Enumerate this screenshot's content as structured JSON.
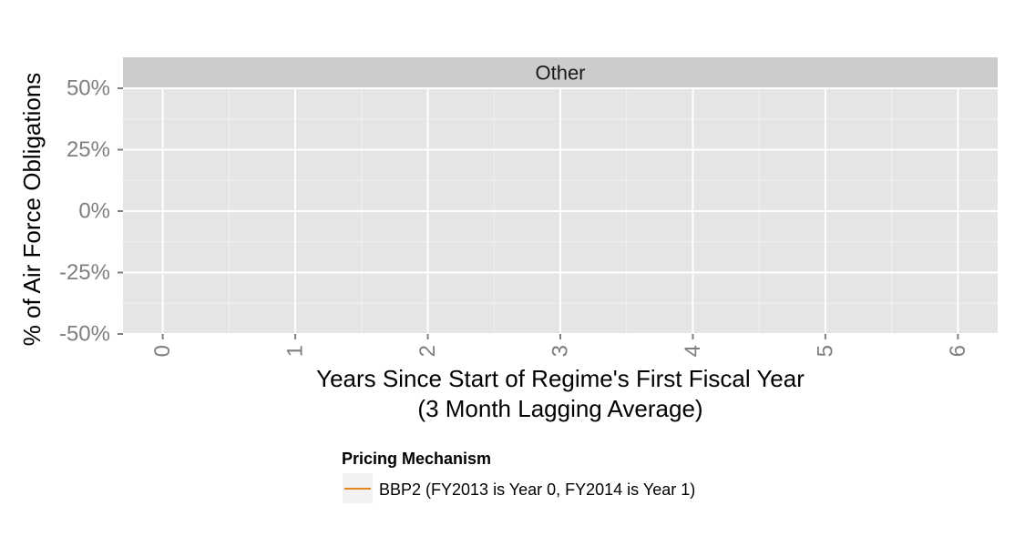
{
  "chart_data": {
    "type": "line",
    "facet": "Other",
    "xlabel_line1": "Years Since Start of Regime's First Fiscal Year",
    "xlabel_line2": "(3 Month Lagging Average)",
    "ylabel": "% of Air Force Obligations",
    "x_ticks": [
      0,
      1,
      2,
      3,
      4,
      5,
      6
    ],
    "x_tick_labels": [
      "0",
      "1",
      "2",
      "3",
      "4",
      "5",
      "6"
    ],
    "xlim": [
      -0.3,
      6.3
    ],
    "y_ticks": [
      0.5,
      0.25,
      0,
      -0.25,
      -0.5
    ],
    "y_tick_labels": [
      "50%",
      "25%",
      "0%",
      "-25%",
      "-50%"
    ],
    "ylim": [
      -0.5,
      0.5
    ],
    "grid": true,
    "legend": {
      "title": "Pricing Mechanism",
      "position": "bottom",
      "entries": [
        {
          "label": "BBP2 (FY2013 is Year 0, FY2014 is Year 1)",
          "color": "#e6861a"
        }
      ]
    },
    "series": [
      {
        "label": "BBP2 (FY2013 is Year 0, FY2014 is Year 1)",
        "color": "#e6861a",
        "x": [],
        "y": []
      }
    ],
    "colors": {
      "panel_background": "#e5e5e5",
      "strip_background": "#cccccc",
      "grid_major": "#ffffff",
      "grid_minor": "#f2f2f2",
      "tick_text": "#7f7f7f"
    }
  }
}
